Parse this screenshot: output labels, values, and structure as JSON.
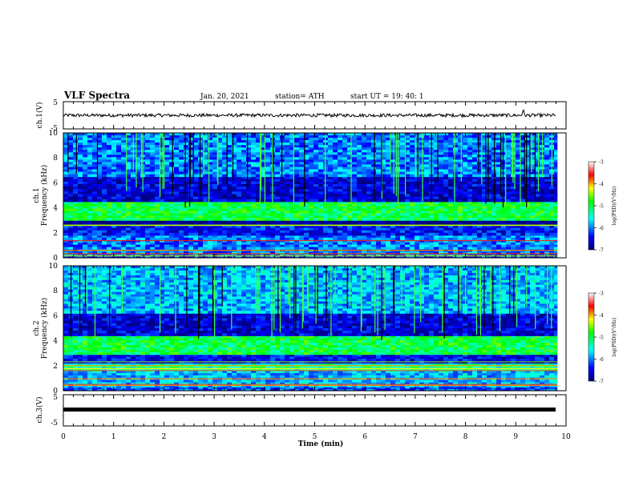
{
  "header": {
    "title": "VLF Spectra",
    "date": "Jan. 20, 2021",
    "station": "station= ATH",
    "start": "start UT =   19: 40: 1"
  },
  "chart_data": [
    {
      "type": "line",
      "panel": "ch1-voltage",
      "ylabel": "ch.1(V)",
      "ylim": [
        -5,
        5
      ],
      "yticks": [
        "5",
        "-5"
      ],
      "xlim": [
        0,
        10
      ],
      "series": [
        {
          "mean": 0,
          "amplitude": 0.6,
          "spikes": [
            [
              9.15,
              2.3
            ]
          ]
        }
      ]
    },
    {
      "type": "heatmap",
      "panel": "ch1-spectrogram",
      "ylabel": "ch.1\nFrequency (kHz)",
      "ylim": [
        0,
        10
      ],
      "yticks": [
        "0",
        "2",
        "4",
        "6",
        "8",
        "10"
      ],
      "xlim": [
        0,
        9.83
      ],
      "colorbar": {
        "label": "log(PSD)(V²/Hz)",
        "ticks": [
          "-3",
          "-4",
          "-5",
          "-6",
          "-7"
        ],
        "range": [
          -7,
          -3
        ]
      },
      "bands": [
        {
          "from": 0,
          "to": 0.3,
          "level": -6.2
        },
        {
          "from": 0.3,
          "to": 1.8,
          "level": -6.0
        },
        {
          "from": 1.8,
          "to": 2.6,
          "level": -6.4
        },
        {
          "from": 2.6,
          "to": 3.0,
          "level": -7.0
        },
        {
          "from": 3.0,
          "to": 4.5,
          "level": -5.0
        },
        {
          "from": 4.5,
          "to": 6.5,
          "level": -6.6
        },
        {
          "from": 6.5,
          "to": 10,
          "level": -6.0
        }
      ]
    },
    {
      "type": "heatmap",
      "panel": "ch2-spectrogram",
      "ylabel": "ch.2\nFrequency (kHz)",
      "ylim": [
        0,
        10
      ],
      "yticks": [
        "0",
        "2",
        "4",
        "6",
        "8",
        "10"
      ],
      "xlim": [
        0,
        9.83
      ],
      "colorbar": {
        "label": "log(PSD)(V²/Hz)",
        "ticks": [
          "-3",
          "-4",
          "-5",
          "-6",
          "-7"
        ],
        "range": [
          -7,
          -3
        ]
      },
      "bands": [
        {
          "from": 0,
          "to": 0.3,
          "level": -6.2
        },
        {
          "from": 0.3,
          "to": 1.6,
          "level": -5.8
        },
        {
          "from": 1.6,
          "to": 2.2,
          "level": -5.4
        },
        {
          "from": 2.2,
          "to": 2.9,
          "level": -6.5
        },
        {
          "from": 2.9,
          "to": 4.4,
          "level": -5.0
        },
        {
          "from": 4.4,
          "to": 6.2,
          "level": -6.6
        },
        {
          "from": 6.2,
          "to": 10,
          "level": -5.8
        }
      ]
    },
    {
      "type": "line",
      "panel": "ch3-voltage",
      "ylabel": "ch.3(V)",
      "ylim": [
        -5,
        5
      ],
      "yticks": [
        "5",
        "-5"
      ],
      "xlim": [
        0,
        10
      ],
      "xlabel": "Time (min)",
      "xticks": [
        "0",
        "1",
        "2",
        "3",
        "4",
        "5",
        "6",
        "7",
        "8",
        "9",
        "10"
      ],
      "series": [
        {
          "mean": 0,
          "amplitude": 0,
          "flat": true
        }
      ]
    }
  ]
}
